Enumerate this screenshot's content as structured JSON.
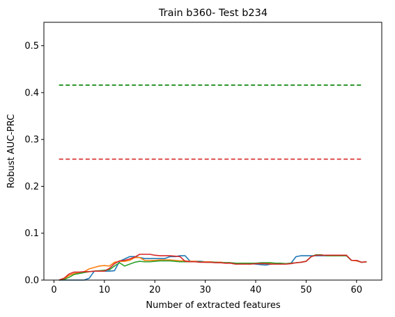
{
  "chart_data": {
    "type": "line",
    "title": "Train b360- Test b234",
    "xlabel": "Number of extracted features",
    "ylabel": "Robust AUC-PRC",
    "xlim": [
      -2,
      65
    ],
    "ylim": [
      0,
      0.55
    ],
    "xticks": [
      0,
      10,
      20,
      30,
      40,
      50,
      60
    ],
    "yticks": [
      0.0,
      0.1,
      0.2,
      0.3,
      0.4,
      0.5
    ],
    "xtick_labels": [
      "0",
      "10",
      "20",
      "30",
      "40",
      "50",
      "60"
    ],
    "ytick_labels": [
      "0.0",
      "0.1",
      "0.2",
      "0.3",
      "0.4",
      "0.5"
    ],
    "grid": false,
    "legend": "none",
    "reference_lines": [
      {
        "style": "dashed",
        "color": "#008000",
        "y": 0.416,
        "x": [
          1,
          61
        ]
      },
      {
        "style": "dashed",
        "color": "#d62728",
        "y": 0.258,
        "x": [
          1,
          61
        ]
      }
    ],
    "series": [
      {
        "color": "#1f77b4",
        "x": [
          1,
          2,
          3,
          4,
          5,
          6,
          7,
          8,
          9,
          10,
          11,
          12,
          13,
          14,
          15,
          16,
          17,
          18,
          19,
          20,
          21,
          22,
          23,
          24,
          25,
          26,
          27,
          28,
          29,
          30,
          31,
          32,
          33,
          34,
          35,
          36,
          37,
          38,
          39,
          40,
          41,
          42,
          43,
          44,
          45,
          46,
          47,
          48,
          49,
          50,
          51,
          52,
          53,
          54,
          55,
          56,
          57,
          58,
          59,
          60,
          61,
          62
        ],
        "values": [
          0.0,
          0.0,
          0.0,
          0.0,
          0.0,
          0.0,
          0.004,
          0.019,
          0.019,
          0.019,
          0.019,
          0.02,
          0.04,
          0.045,
          0.05,
          0.05,
          0.048,
          0.046,
          0.046,
          0.046,
          0.046,
          0.046,
          0.05,
          0.05,
          0.052,
          0.052,
          0.04,
          0.04,
          0.04,
          0.039,
          0.039,
          0.038,
          0.038,
          0.037,
          0.037,
          0.036,
          0.036,
          0.035,
          0.035,
          0.034,
          0.033,
          0.032,
          0.034,
          0.035,
          0.035,
          0.035,
          0.036,
          0.05,
          0.052,
          0.052,
          0.052,
          0.052,
          0.052,
          0.052,
          0.052,
          0.052,
          0.052,
          0.052,
          0.042,
          0.042,
          0.038,
          0.039
        ]
      },
      {
        "color": "#ff7f0e",
        "x": [
          1,
          2,
          3,
          4,
          5,
          6,
          7,
          8,
          9,
          10,
          11,
          12,
          13,
          14,
          15,
          16,
          17,
          18,
          19,
          20,
          21,
          22,
          23,
          24,
          25,
          26,
          27,
          28,
          29,
          30,
          31,
          32,
          33,
          34,
          35,
          36,
          37,
          38,
          39,
          40,
          41,
          42,
          43,
          44,
          45,
          46,
          47,
          48,
          49,
          50,
          51,
          52,
          53,
          54,
          55,
          56,
          57,
          58,
          59,
          60,
          61,
          62
        ],
        "values": [
          0.0,
          0.002,
          0.01,
          0.014,
          0.015,
          0.018,
          0.024,
          0.027,
          0.03,
          0.031,
          0.03,
          0.038,
          0.04,
          0.04,
          0.042,
          0.048,
          0.048,
          0.042,
          0.042,
          0.042,
          0.043,
          0.043,
          0.043,
          0.042,
          0.041,
          0.041,
          0.04,
          0.04,
          0.039,
          0.039,
          0.039,
          0.038,
          0.038,
          0.037,
          0.037,
          0.036,
          0.036,
          0.036,
          0.036,
          0.036,
          0.036,
          0.036,
          0.035,
          0.035,
          0.035,
          0.035,
          0.036,
          0.037,
          0.038,
          0.04,
          0.05,
          0.054,
          0.053,
          0.053,
          0.052,
          0.052,
          0.052,
          0.052,
          0.042,
          0.041,
          0.038,
          0.039
        ]
      },
      {
        "color": "#2ca02c",
        "x": [
          1,
          2,
          3,
          4,
          5,
          6,
          7,
          8,
          9,
          10,
          11,
          12,
          13,
          14,
          15,
          16,
          17,
          18,
          19,
          20,
          21,
          22,
          23,
          24,
          25,
          26,
          27,
          28,
          29,
          30,
          31,
          32,
          33,
          34,
          35,
          36,
          37,
          38,
          39,
          40,
          41,
          42,
          43,
          44,
          45,
          46,
          47,
          48,
          49,
          50,
          51,
          52,
          53,
          54,
          55,
          56,
          57,
          58,
          59,
          60,
          61,
          62
        ],
        "values": [
          0.0,
          0.001,
          0.006,
          0.012,
          0.014,
          0.016,
          0.018,
          0.019,
          0.02,
          0.021,
          0.022,
          0.03,
          0.037,
          0.03,
          0.034,
          0.038,
          0.04,
          0.039,
          0.039,
          0.04,
          0.041,
          0.041,
          0.041,
          0.04,
          0.039,
          0.039,
          0.039,
          0.039,
          0.039,
          0.038,
          0.038,
          0.038,
          0.037,
          0.037,
          0.037,
          0.036,
          0.036,
          0.036,
          0.036,
          0.036,
          0.037,
          0.037,
          0.037,
          0.036,
          0.036,
          0.035,
          0.036,
          0.037,
          0.038,
          0.04,
          0.05,
          0.054,
          0.054,
          0.052,
          0.052,
          0.052,
          0.052,
          0.052,
          0.042,
          0.042,
          0.038,
          0.039
        ]
      },
      {
        "color": "#d62728",
        "x": [
          1,
          2,
          3,
          4,
          5,
          6,
          7,
          8,
          9,
          10,
          11,
          12,
          13,
          14,
          15,
          16,
          17,
          18,
          19,
          20,
          21,
          22,
          23,
          24,
          25,
          26,
          27,
          28,
          29,
          30,
          31,
          32,
          33,
          34,
          35,
          36,
          37,
          38,
          39,
          40,
          41,
          42,
          43,
          44,
          45,
          46,
          47,
          48,
          49,
          50,
          51,
          52,
          53,
          54,
          55,
          56,
          57,
          58,
          59,
          60,
          61,
          62
        ],
        "values": [
          0.0,
          0.004,
          0.013,
          0.017,
          0.017,
          0.018,
          0.018,
          0.019,
          0.019,
          0.019,
          0.025,
          0.035,
          0.041,
          0.042,
          0.045,
          0.049,
          0.055,
          0.055,
          0.055,
          0.053,
          0.052,
          0.052,
          0.052,
          0.051,
          0.05,
          0.04,
          0.039,
          0.039,
          0.038,
          0.038,
          0.038,
          0.037,
          0.037,
          0.036,
          0.036,
          0.034,
          0.034,
          0.034,
          0.034,
          0.035,
          0.035,
          0.035,
          0.034,
          0.034,
          0.034,
          0.034,
          0.035,
          0.037,
          0.038,
          0.04,
          0.05,
          0.053,
          0.053,
          0.053,
          0.053,
          0.053,
          0.053,
          0.053,
          0.042,
          0.042,
          0.038,
          0.039
        ]
      }
    ]
  }
}
